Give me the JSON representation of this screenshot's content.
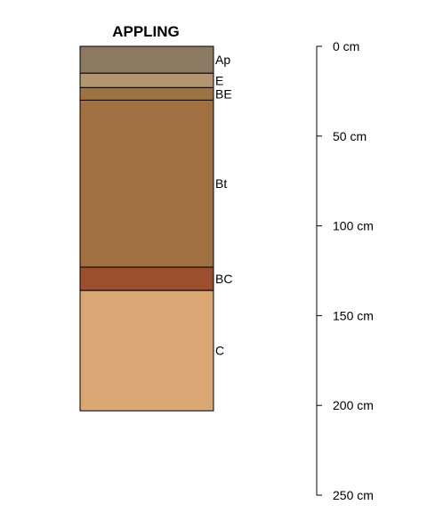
{
  "chart_data": {
    "type": "soil-profile",
    "title": "APPLING",
    "depth_unit": "cm",
    "depth_range": [
      0,
      250
    ],
    "horizons": [
      {
        "name": "Ap",
        "top": 0,
        "bottom": 15,
        "color": "#8C7961"
      },
      {
        "name": "E",
        "top": 15,
        "bottom": 23,
        "color": "#B39572"
      },
      {
        "name": "BE",
        "top": 23,
        "bottom": 30,
        "color": "#9C7343"
      },
      {
        "name": "Bt",
        "top": 30,
        "bottom": 123,
        "color": "#A07040"
      },
      {
        "name": "BC",
        "top": 123,
        "bottom": 136,
        "color": "#9C4F2E"
      },
      {
        "name": "C",
        "top": 136,
        "bottom": 203,
        "color": "#DAA774"
      }
    ],
    "axis": {
      "ticks": [
        0,
        50,
        100,
        150,
        200,
        250
      ],
      "tick_labels": [
        "0 cm",
        "50 cm",
        "100 cm",
        "150 cm",
        "200 cm",
        "250 cm"
      ]
    }
  }
}
